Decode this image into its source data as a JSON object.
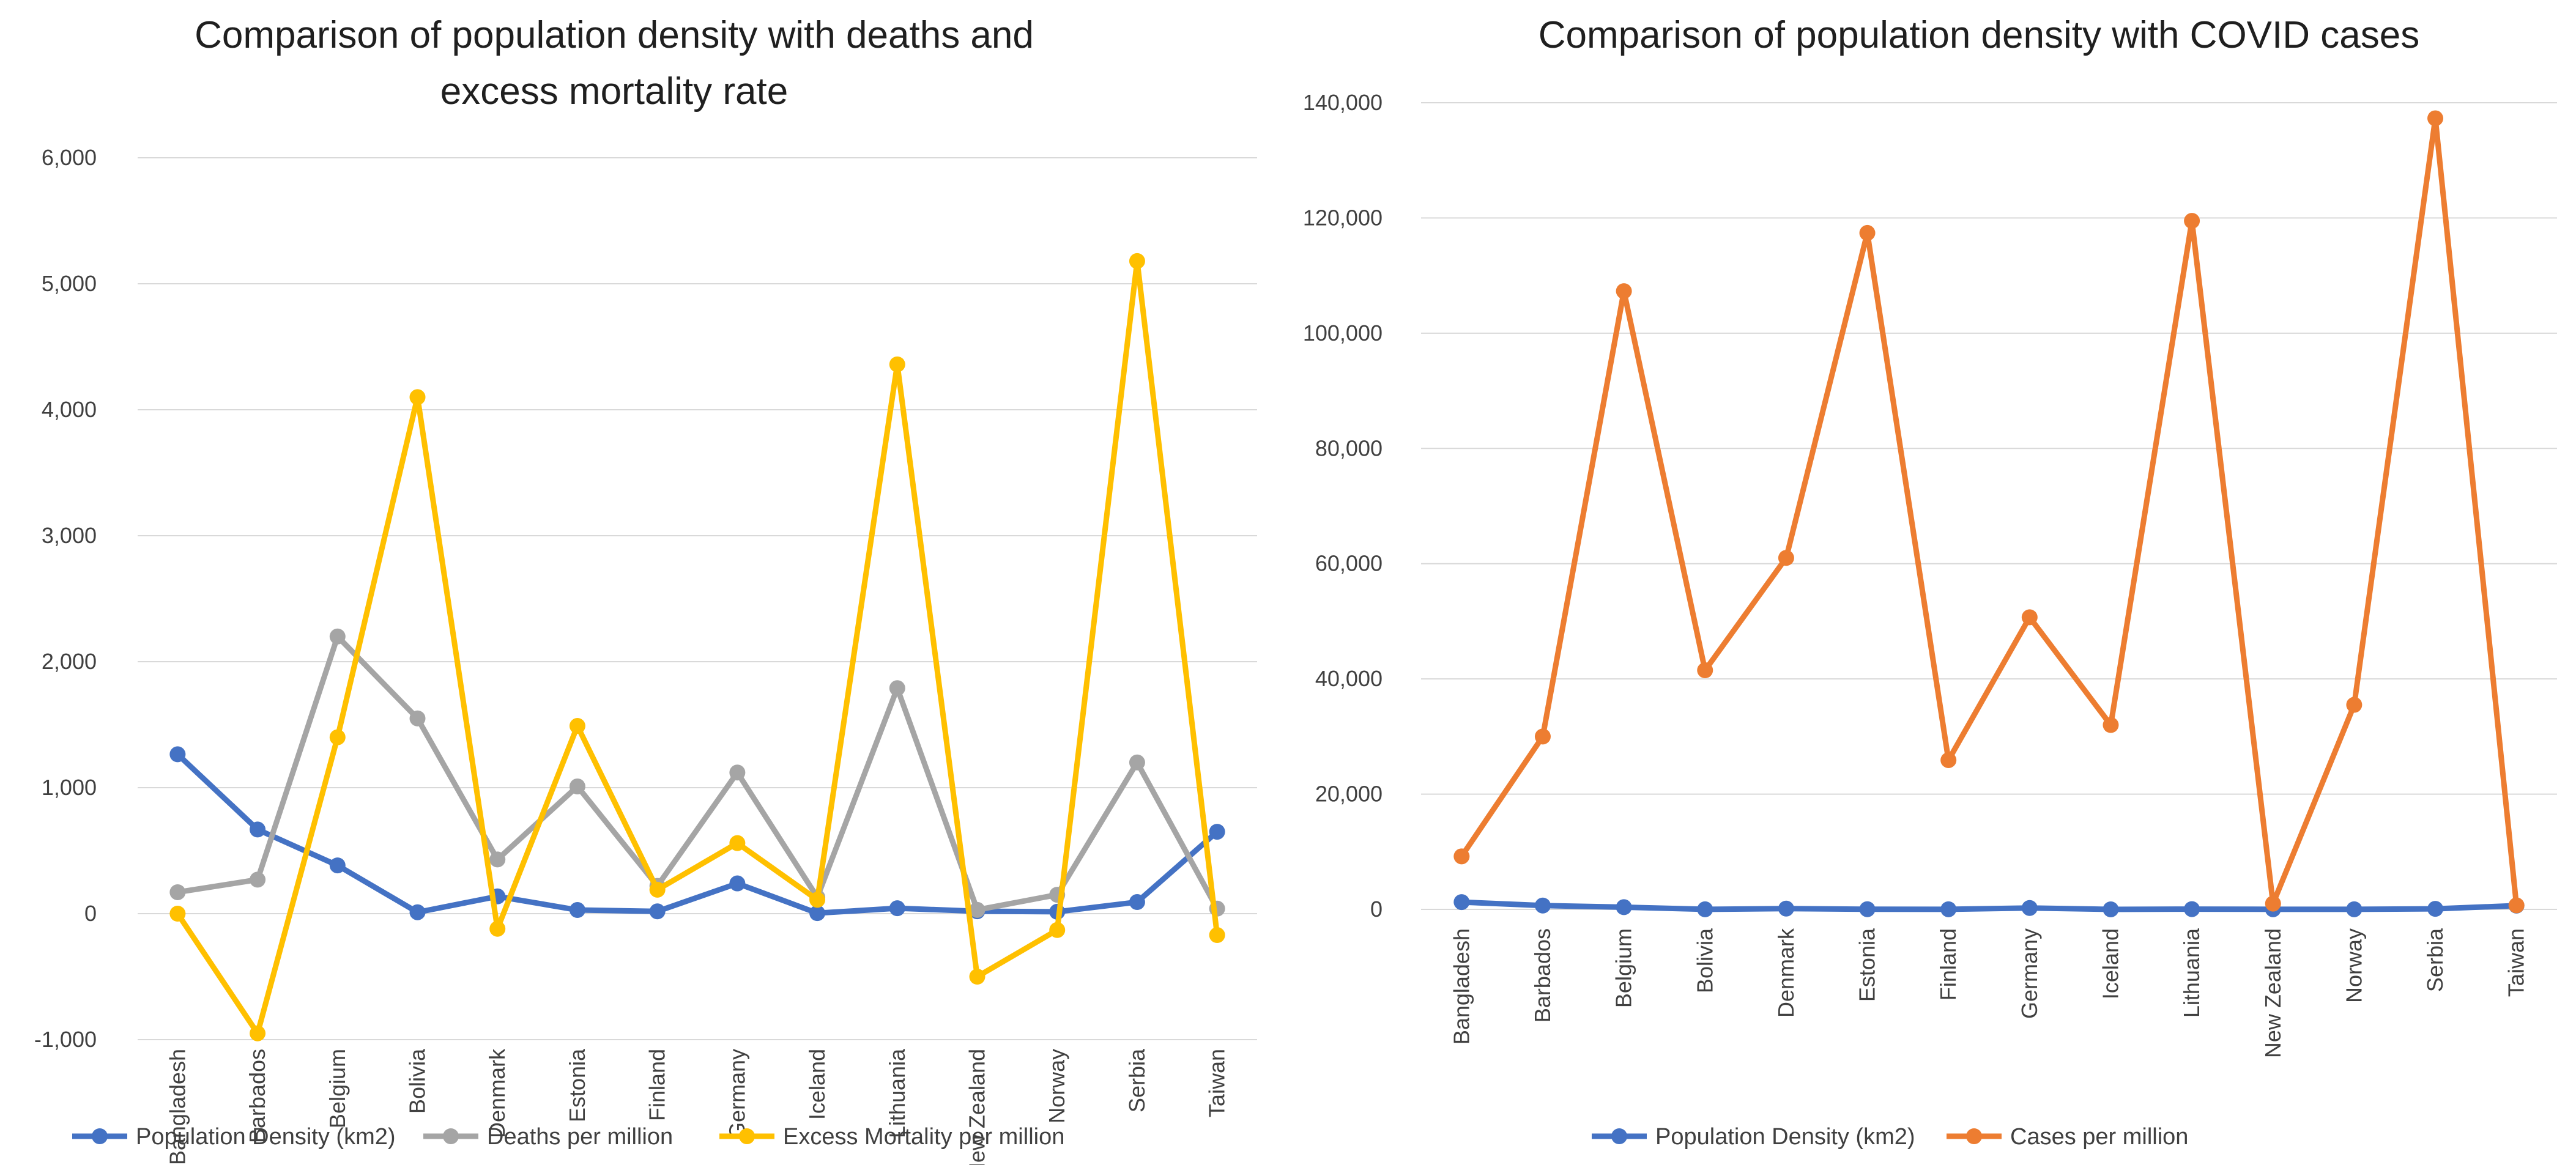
{
  "colors": {
    "population": "#4472C4",
    "deaths": "#A5A5A5",
    "excess": "#FFC000",
    "cases": "#ED7D31",
    "grid": "#D9D9D9"
  },
  "chart_data": [
    {
      "type": "line",
      "title": "Comparison of population density with deaths and excess mortality rate",
      "title_lines": [
        "Comparison of population density with deaths and",
        "excess mortality rate"
      ],
      "categories": [
        "Bangladesh",
        "Barbados",
        "Belgium",
        "Bolivia",
        "Denmark",
        "Estonia",
        "Finland",
        "Germany",
        "Iceland",
        "Lithuania",
        "New Zealand",
        "Norway",
        "Serbia",
        "Taiwan"
      ],
      "ylim": [
        -1000,
        6000
      ],
      "yticks": [
        -1000,
        0,
        1000,
        2000,
        3000,
        4000,
        5000,
        6000
      ],
      "ytick_labels": [
        "-1,000",
        "0",
        "1,000",
        "2,000",
        "3,000",
        "4,000",
        "5,000",
        "6,000"
      ],
      "grid": true,
      "legend_position": "bottom",
      "series": [
        {
          "name": "Population Density (km2)",
          "color_key": "population",
          "values": [
            1265,
            668,
            383,
            11,
            137,
            29,
            18,
            240,
            4,
            43,
            19,
            15,
            92,
            650
          ]
        },
        {
          "name": "Deaths per million",
          "color_key": "deaths",
          "values": [
            170,
            270,
            2200,
            1550,
            430,
            1010,
            220,
            1120,
            130,
            1790,
            30,
            150,
            1200,
            40
          ]
        },
        {
          "name": "Excess Mortality per million",
          "color_key": "excess",
          "values": [
            0,
            -950,
            1400,
            4100,
            -120,
            1490,
            190,
            560,
            110,
            4360,
            -500,
            -130,
            5180,
            -170
          ]
        }
      ]
    },
    {
      "type": "line",
      "title": "Comparison of population density with COVID cases",
      "title_lines": [
        "Comparison of population density with COVID cases"
      ],
      "categories": [
        "Bangladesh",
        "Barbados",
        "Belgium",
        "Bolivia",
        "Denmark",
        "Estonia",
        "Finland",
        "Germany",
        "Iceland",
        "Lithuania",
        "New Zealand",
        "Norway",
        "Serbia",
        "Taiwan"
      ],
      "ylim": [
        0,
        140000
      ],
      "yticks": [
        0,
        20000,
        40000,
        60000,
        80000,
        100000,
        120000,
        140000
      ],
      "ytick_labels": [
        "0",
        "20,000",
        "40,000",
        "60,000",
        "80,000",
        "100,000",
        "120,000",
        "140,000"
      ],
      "grid": true,
      "legend_position": "bottom",
      "series": [
        {
          "name": "Population Density (km2)",
          "color_key": "population",
          "values": [
            1265,
            668,
            383,
            11,
            137,
            29,
            18,
            240,
            4,
            43,
            19,
            15,
            92,
            650
          ]
        },
        {
          "name": "Cases per million",
          "color_key": "cases",
          "values": [
            9200,
            30000,
            107300,
            41500,
            61000,
            117400,
            25900,
            50700,
            32000,
            119500,
            1000,
            35500,
            137300,
            700
          ]
        }
      ]
    }
  ]
}
